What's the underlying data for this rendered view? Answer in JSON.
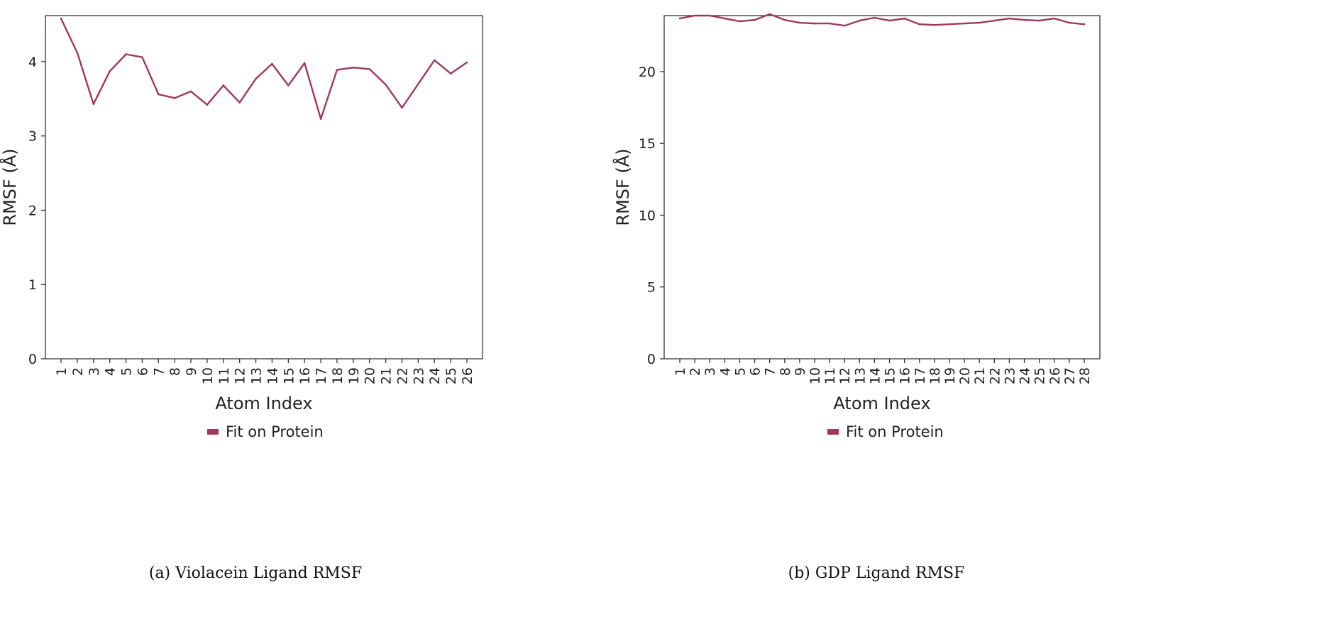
{
  "colors": {
    "series": "#A0385A",
    "axis": "#333333",
    "text": "#222222"
  },
  "chart_data": [
    {
      "type": "line",
      "caption": "(a) Violacein Ligand RMSF",
      "xlabel": "Atom Index",
      "ylabel": "RMSF (Å)",
      "ylim": [
        0,
        4.62
      ],
      "yticks": [
        0,
        1,
        2,
        3,
        4
      ],
      "grid": false,
      "legend_position": "bottom-center",
      "x": [
        1,
        2,
        3,
        4,
        5,
        6,
        7,
        8,
        9,
        10,
        11,
        12,
        13,
        14,
        15,
        16,
        17,
        18,
        19,
        20,
        21,
        22,
        23,
        24,
        25,
        26
      ],
      "series": [
        {
          "name": "Fit on Protein",
          "values": [
            4.58,
            4.12,
            3.43,
            3.87,
            4.1,
            4.06,
            3.56,
            3.51,
            3.6,
            3.42,
            3.68,
            3.45,
            3.77,
            3.97,
            3.68,
            3.98,
            3.23,
            3.89,
            3.92,
            3.9,
            3.69,
            3.38,
            3.7,
            4.02,
            3.84,
            3.99
          ]
        }
      ]
    },
    {
      "type": "line",
      "caption": "(b) GDP Ligand RMSF",
      "xlabel": "Atom Index",
      "ylabel": "RMSF (Å)",
      "ylim": [
        0,
        23.9
      ],
      "yticks": [
        0,
        5,
        10,
        15,
        20
      ],
      "grid": false,
      "legend_position": "bottom-center",
      "x": [
        1,
        2,
        3,
        4,
        5,
        6,
        7,
        8,
        9,
        10,
        11,
        12,
        13,
        14,
        15,
        16,
        17,
        18,
        19,
        20,
        21,
        22,
        23,
        24,
        25,
        26,
        27,
        28
      ],
      "series": [
        {
          "name": "Fit on Protein",
          "values": [
            23.7,
            23.9,
            23.9,
            23.7,
            23.5,
            23.6,
            24.0,
            23.6,
            23.4,
            23.35,
            23.35,
            23.2,
            23.55,
            23.75,
            23.55,
            23.7,
            23.3,
            23.25,
            23.3,
            23.35,
            23.4,
            23.55,
            23.7,
            23.6,
            23.55,
            23.7,
            23.4,
            23.3
          ]
        }
      ]
    }
  ]
}
